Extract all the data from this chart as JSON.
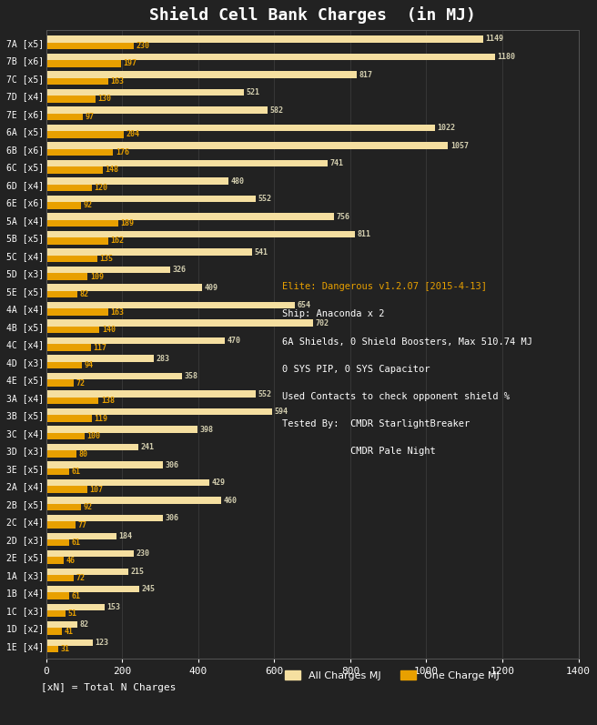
{
  "title": "Shield Cell Bank Charges  (in MJ)",
  "background_color": "#222222",
  "text_color": "#ffffff",
  "bar_color_all": "#f5dfa0",
  "bar_color_one": "#e8a000",
  "categories": [
    "7A [x5]",
    "7B [x6]",
    "7C [x5]",
    "7D [x4]",
    "7E [x6]",
    "6A [x5]",
    "6B [x6]",
    "6C [x5]",
    "6D [x4]",
    "6E [x6]",
    "5A [x4]",
    "5B [x5]",
    "5C [x4]",
    "5D [x3]",
    "5E [x5]",
    "4A [x4]",
    "4B [x5]",
    "4C [x4]",
    "4D [x3]",
    "4E [x5]",
    "3A [x4]",
    "3B [x5]",
    "3C [x4]",
    "3D [x3]",
    "3E [x5]",
    "2A [x4]",
    "2B [x5]",
    "2C [x4]",
    "2D [x3]",
    "2E [x5]",
    "1A [x3]",
    "1B [x4]",
    "1C [x3]",
    "1D [x2]",
    "1E [x4]"
  ],
  "all_charges": [
    1149,
    1180,
    817,
    521,
    582,
    1022,
    1057,
    741,
    480,
    552,
    756,
    811,
    541,
    326,
    409,
    654,
    702,
    470,
    283,
    358,
    552,
    594,
    398,
    241,
    306,
    429,
    460,
    306,
    184,
    230,
    215,
    245,
    153,
    82,
    123
  ],
  "one_charge": [
    230,
    197,
    163,
    130,
    97,
    204,
    176,
    148,
    120,
    92,
    189,
    162,
    135,
    109,
    82,
    163,
    140,
    117,
    94,
    72,
    138,
    119,
    100,
    80,
    61,
    107,
    92,
    77,
    61,
    46,
    72,
    61,
    51,
    41,
    31
  ],
  "val_color_all": "#d4cfb0",
  "val_color_one": "#e8a000",
  "xlim": [
    0,
    1400
  ],
  "xticks": [
    0,
    200,
    400,
    600,
    800,
    1000,
    1200,
    1400
  ],
  "legend_label_all": "All Charges MJ",
  "legend_label_one": "One Charge MJ",
  "legend_note": "[xN] = Total N Charges",
  "annotation_lines": [
    "Elite: Dangerous v1.2.07 [2015-4-13]",
    "Ship: Anaconda x 2",
    "6A Shields, 0 Shield Boosters, Max 510.74 MJ",
    "0 SYS PIP, 0 SYS Capacitor",
    "Used Contacts to check opponent shield %",
    "Tested By:  CMDR StarlightBreaker",
    "            CMDR Pale Night"
  ],
  "annotation_colors": [
    "#e8a000",
    "#ffffff",
    "#ffffff",
    "#ffffff",
    "#ffffff",
    "#ffffff",
    "#ffffff"
  ]
}
